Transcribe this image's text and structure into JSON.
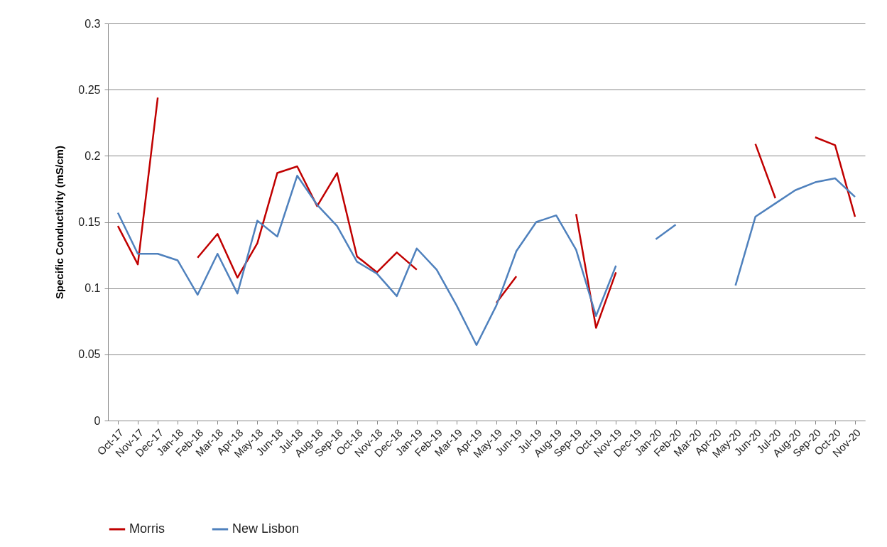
{
  "chart_data": {
    "type": "line",
    "ylabel": "Specific Conductivity (mS/cm)",
    "categories": [
      "Oct-17",
      "Nov-17",
      "Dec-17",
      "Jan-18",
      "Feb-18",
      "Mar-18",
      "Apr-18",
      "May-18",
      "Jun-18",
      "Jul-18",
      "Aug-18",
      "Sep-18",
      "Oct-18",
      "Nov-18",
      "Dec-18",
      "Jan-19",
      "Feb-19",
      "Mar-19",
      "Apr-19",
      "May-19",
      "Jun-19",
      "Jul-19",
      "Aug-19",
      "Sep-19",
      "Oct-19",
      "Nov-19",
      "Dec-19",
      "Jan-20",
      "Feb-20",
      "Mar-20",
      "Apr-20",
      "May-20",
      "Jun-20",
      "Jul-20",
      "Aug-20",
      "Sep-20",
      "Oct-20",
      "Nov-20"
    ],
    "series": [
      {
        "name": "Morris",
        "color": "#c00000",
        "values": [
          0.147,
          0.118,
          0.244,
          null,
          0.123,
          0.141,
          0.108,
          0.134,
          0.187,
          0.192,
          0.162,
          0.187,
          0.124,
          0.112,
          0.127,
          0.114,
          null,
          null,
          null,
          0.089,
          0.109,
          null,
          null,
          0.156,
          0.07,
          0.112,
          null,
          null,
          null,
          null,
          null,
          null,
          0.209,
          0.168,
          null,
          0.214,
          0.208,
          0.154
        ]
      },
      {
        "name": "New Lisbon",
        "color": "#4f81bd",
        "values": [
          0.157,
          0.126,
          0.126,
          0.121,
          0.095,
          0.126,
          0.096,
          0.151,
          0.139,
          0.185,
          0.163,
          0.147,
          0.12,
          0.111,
          0.094,
          0.13,
          0.114,
          0.087,
          0.057,
          0.087,
          0.128,
          0.15,
          0.155,
          0.129,
          0.079,
          0.117,
          null,
          0.137,
          0.148,
          null,
          null,
          0.102,
          0.154,
          0.164,
          0.174,
          0.18,
          0.183,
          0.169
        ]
      }
    ],
    "ylim": [
      0,
      0.3
    ],
    "yticks": [
      0,
      0.05,
      0.1,
      0.15,
      0.2,
      0.25,
      0.3
    ],
    "grid": "y",
    "legend": "bottom",
    "line_style": "solid"
  }
}
